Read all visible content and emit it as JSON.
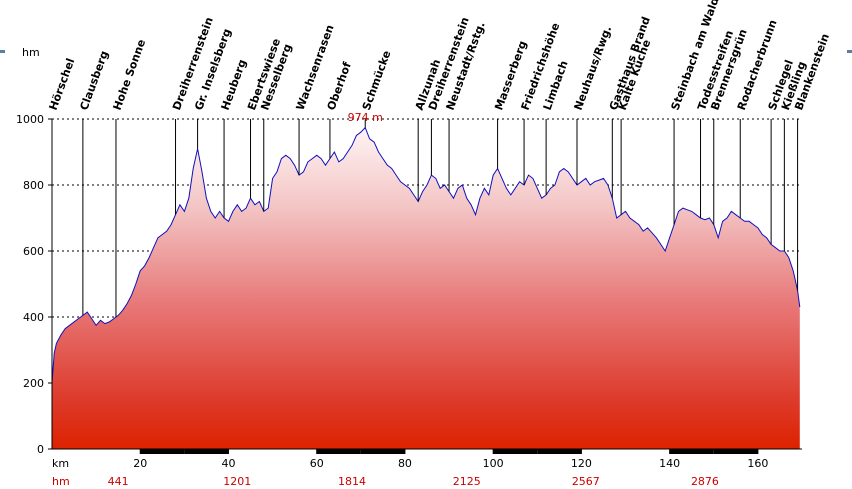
{
  "chart_data": {
    "type": "area",
    "y_unit": "hm",
    "x_unit": "km",
    "ylim": [
      0,
      1000
    ],
    "xlim": [
      0,
      170
    ],
    "y_ticks": [
      0,
      200,
      400,
      600,
      800,
      1000
    ],
    "x_ticks": [
      20,
      40,
      60,
      80,
      100,
      120,
      140,
      160
    ],
    "peak_label": "974 m",
    "peak": {
      "x": 71,
      "y": 974
    },
    "grid": true,
    "waypoints": [
      {
        "name": "Hörschel",
        "x": 0
      },
      {
        "name": "Clausberg",
        "x": 7
      },
      {
        "name": "Hohe Sonne",
        "x": 14.5
      },
      {
        "name": "Dreiherrenstein",
        "x": 28
      },
      {
        "name": "Gr. Inselsberg",
        "x": 33
      },
      {
        "name": "Heuberg",
        "x": 39
      },
      {
        "name": "Ebertswiese",
        "x": 45
      },
      {
        "name": "Nesselberg",
        "x": 48
      },
      {
        "name": "Wachsenrasen",
        "x": 56
      },
      {
        "name": "Oberhof",
        "x": 63
      },
      {
        "name": "Schmücke",
        "x": 71
      },
      {
        "name": "Allzunah",
        "x": 83
      },
      {
        "name": "Dreiherrenstein",
        "x": 86
      },
      {
        "name": "Neustadt/Rstg.",
        "x": 90
      },
      {
        "name": "Masserberg",
        "x": 101
      },
      {
        "name": "Friedrichshöhe",
        "x": 107
      },
      {
        "name": "Limbach",
        "x": 112
      },
      {
        "name": "Neuhaus/Rwg.",
        "x": 119
      },
      {
        "name": "Gasthaus Brand",
        "x": 127
      },
      {
        "name": "Kalte Küche",
        "x": 129
      },
      {
        "name": "Steinbach am Wald",
        "x": 141
      },
      {
        "name": "Todesstreifen",
        "x": 147
      },
      {
        "name": "Brennersgrün",
        "x": 150
      },
      {
        "name": "Rodacherbrunn",
        "x": 156
      },
      {
        "name": "Schlegel",
        "x": 163
      },
      {
        "name": "Kießling",
        "x": 166
      },
      {
        "name": "Blankenstein",
        "x": 169
      }
    ],
    "cumulative_ascent": [
      {
        "x": 15,
        "value": "441"
      },
      {
        "x": 42,
        "value": "1201"
      },
      {
        "x": 68,
        "value": "1814"
      },
      {
        "x": 94,
        "value": "2125"
      },
      {
        "x": 121,
        "value": "2567"
      },
      {
        "x": 148,
        "value": "2876"
      }
    ],
    "profile": [
      [
        0,
        200
      ],
      [
        0.5,
        290
      ],
      [
        1,
        320
      ],
      [
        2,
        345
      ],
      [
        3,
        365
      ],
      [
        4,
        375
      ],
      [
        5,
        385
      ],
      [
        6,
        395
      ],
      [
        7,
        405
      ],
      [
        8,
        415
      ],
      [
        9,
        395
      ],
      [
        10,
        375
      ],
      [
        11,
        390
      ],
      [
        12,
        380
      ],
      [
        13,
        385
      ],
      [
        14,
        395
      ],
      [
        15,
        405
      ],
      [
        16,
        420
      ],
      [
        17,
        440
      ],
      [
        18,
        465
      ],
      [
        19,
        500
      ],
      [
        20,
        540
      ],
      [
        21,
        555
      ],
      [
        22,
        580
      ],
      [
        23,
        610
      ],
      [
        24,
        640
      ],
      [
        25,
        650
      ],
      [
        26,
        660
      ],
      [
        27,
        680
      ],
      [
        28,
        710
      ],
      [
        29,
        740
      ],
      [
        30,
        720
      ],
      [
        31,
        760
      ],
      [
        32,
        850
      ],
      [
        33,
        910
      ],
      [
        34,
        840
      ],
      [
        35,
        760
      ],
      [
        36,
        720
      ],
      [
        37,
        700
      ],
      [
        38,
        720
      ],
      [
        39,
        700
      ],
      [
        40,
        690
      ],
      [
        41,
        720
      ],
      [
        42,
        740
      ],
      [
        43,
        720
      ],
      [
        44,
        730
      ],
      [
        45,
        760
      ],
      [
        46,
        740
      ],
      [
        47,
        750
      ],
      [
        48,
        720
      ],
      [
        49,
        730
      ],
      [
        50,
        820
      ],
      [
        51,
        840
      ],
      [
        52,
        880
      ],
      [
        53,
        890
      ],
      [
        54,
        880
      ],
      [
        55,
        860
      ],
      [
        56,
        830
      ],
      [
        57,
        840
      ],
      [
        58,
        870
      ],
      [
        59,
        880
      ],
      [
        60,
        890
      ],
      [
        61,
        880
      ],
      [
        62,
        860
      ],
      [
        63,
        880
      ],
      [
        64,
        900
      ],
      [
        65,
        870
      ],
      [
        66,
        880
      ],
      [
        67,
        900
      ],
      [
        68,
        920
      ],
      [
        69,
        950
      ],
      [
        70,
        960
      ],
      [
        71,
        974
      ],
      [
        72,
        940
      ],
      [
        73,
        930
      ],
      [
        74,
        900
      ],
      [
        75,
        880
      ],
      [
        76,
        860
      ],
      [
        77,
        850
      ],
      [
        78,
        830
      ],
      [
        79,
        810
      ],
      [
        80,
        800
      ],
      [
        81,
        790
      ],
      [
        82,
        770
      ],
      [
        83,
        750
      ],
      [
        84,
        780
      ],
      [
        85,
        800
      ],
      [
        86,
        830
      ],
      [
        87,
        820
      ],
      [
        88,
        790
      ],
      [
        89,
        800
      ],
      [
        90,
        780
      ],
      [
        91,
        760
      ],
      [
        92,
        790
      ],
      [
        93,
        800
      ],
      [
        94,
        760
      ],
      [
        95,
        740
      ],
      [
        96,
        710
      ],
      [
        97,
        760
      ],
      [
        98,
        790
      ],
      [
        99,
        770
      ],
      [
        100,
        830
      ],
      [
        101,
        850
      ],
      [
        102,
        820
      ],
      [
        103,
        790
      ],
      [
        104,
        770
      ],
      [
        105,
        790
      ],
      [
        106,
        810
      ],
      [
        107,
        800
      ],
      [
        108,
        830
      ],
      [
        109,
        820
      ],
      [
        110,
        790
      ],
      [
        111,
        760
      ],
      [
        112,
        770
      ],
      [
        113,
        790
      ],
      [
        114,
        800
      ],
      [
        115,
        840
      ],
      [
        116,
        850
      ],
      [
        117,
        840
      ],
      [
        118,
        820
      ],
      [
        119,
        800
      ],
      [
        120,
        810
      ],
      [
        121,
        820
      ],
      [
        122,
        800
      ],
      [
        123,
        810
      ],
      [
        124,
        815
      ],
      [
        125,
        820
      ],
      [
        126,
        800
      ],
      [
        127,
        760
      ],
      [
        128,
        700
      ],
      [
        129,
        710
      ],
      [
        130,
        720
      ],
      [
        131,
        700
      ],
      [
        132,
        690
      ],
      [
        133,
        680
      ],
      [
        134,
        660
      ],
      [
        135,
        670
      ],
      [
        136,
        655
      ],
      [
        137,
        640
      ],
      [
        138,
        620
      ],
      [
        139,
        600
      ],
      [
        140,
        640
      ],
      [
        141,
        680
      ],
      [
        142,
        720
      ],
      [
        143,
        730
      ],
      [
        144,
        725
      ],
      [
        145,
        720
      ],
      [
        146,
        710
      ],
      [
        147,
        700
      ],
      [
        148,
        695
      ],
      [
        149,
        700
      ],
      [
        150,
        680
      ],
      [
        151,
        640
      ],
      [
        152,
        690
      ],
      [
        153,
        700
      ],
      [
        154,
        720
      ],
      [
        155,
        710
      ],
      [
        156,
        700
      ],
      [
        157,
        690
      ],
      [
        158,
        690
      ],
      [
        159,
        680
      ],
      [
        160,
        670
      ],
      [
        161,
        650
      ],
      [
        162,
        640
      ],
      [
        163,
        620
      ],
      [
        164,
        610
      ],
      [
        165,
        600
      ],
      [
        166,
        600
      ],
      [
        167,
        580
      ],
      [
        168,
        540
      ],
      [
        169,
        480
      ],
      [
        169.5,
        430
      ]
    ]
  }
}
